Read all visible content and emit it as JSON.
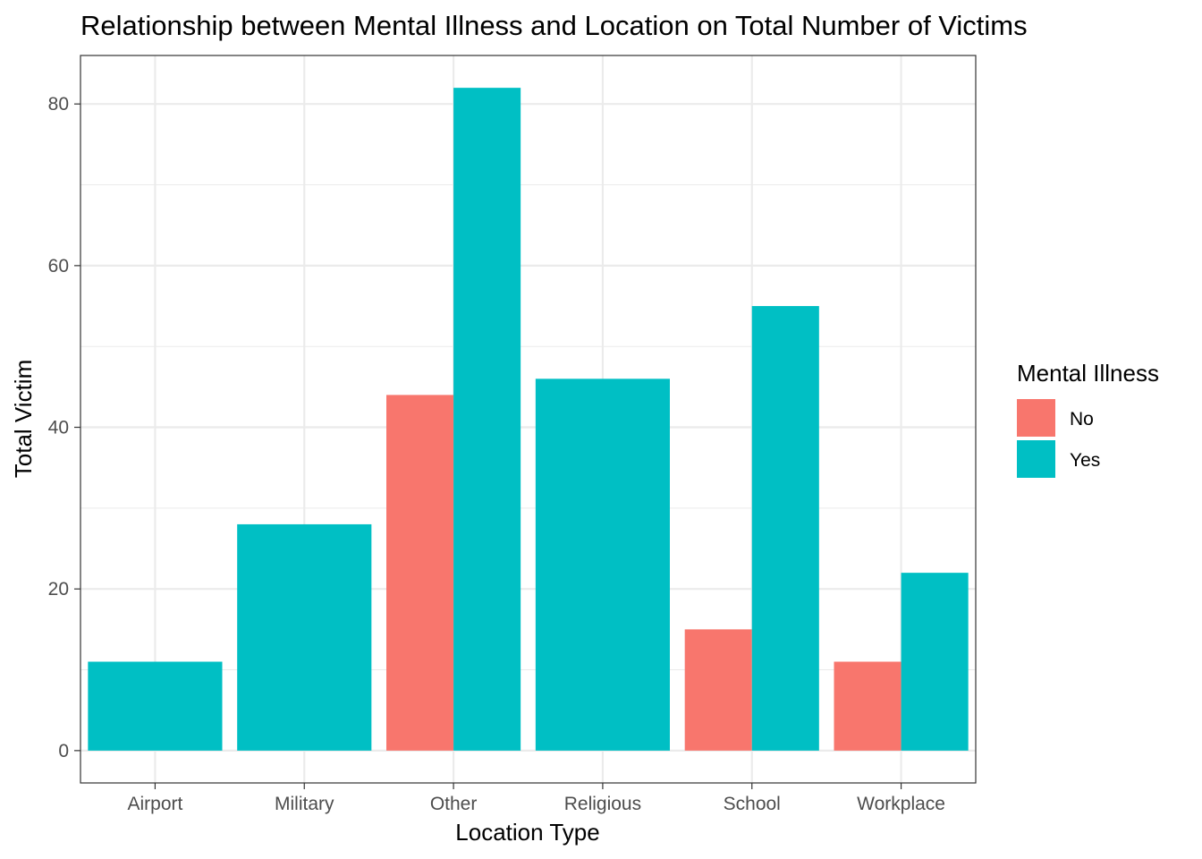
{
  "chart_data": {
    "type": "bar",
    "title": "Relationship between Mental Illness and Location on Total Number of Victims",
    "xlabel": "Location Type",
    "ylabel": "Total Victim",
    "categories": [
      "Airport",
      "Military",
      "Other",
      "Religious",
      "School",
      "Workplace"
    ],
    "series": [
      {
        "name": "No",
        "color": "#F8766D",
        "values": [
          null,
          null,
          44,
          null,
          15,
          11
        ]
      },
      {
        "name": "Yes",
        "color": "#00BFC4",
        "values": [
          11,
          28,
          82,
          46,
          55,
          22
        ]
      }
    ],
    "yticks": [
      0,
      20,
      40,
      60,
      80
    ],
    "ylim": [
      -4,
      86
    ],
    "grid": true,
    "legend": {
      "title": "Mental Illness",
      "position": "right",
      "entries": [
        "No",
        "Yes"
      ]
    }
  }
}
